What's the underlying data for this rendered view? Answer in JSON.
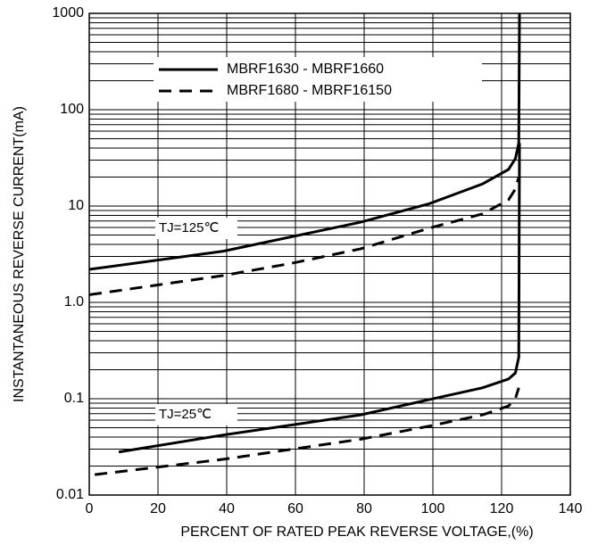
{
  "chart_data": {
    "type": "line",
    "xlabel": "PERCENT OF RATED PEAK REVERSE VOLTAGE,(%)",
    "ylabel": "INSTANTANEOUS REVERSE CURRENT(mA)",
    "xlim": [
      0,
      140
    ],
    "xticks": [
      0,
      20,
      40,
      60,
      80,
      100,
      120,
      140
    ],
    "ylim": [
      0.01,
      1000
    ],
    "log_y": true,
    "grid": true,
    "yticks": [
      0.01,
      0.1,
      {
        "value": 1,
        "label": "1.0"
      },
      10,
      100,
      1000
    ],
    "legend": "upper left",
    "annotations": [
      "TJ=125℃",
      "TJ=25℃"
    ],
    "series": [
      {
        "name": "MBRF1630 - MBRF1660",
        "color": "#000000",
        "dash": "solid",
        "x": [
          0,
          39,
          79,
          99,
          114.5,
          122,
          124,
          125,
          125.2
        ],
        "values": [
          2.2,
          3.4,
          6.8,
          10.6,
          17,
          24,
          31,
          45,
          1000
        ]
      },
      {
        "name": "MBRF1680 - MBRF16150",
        "color": "#000000",
        "dash": "dashed",
        "x": [
          0,
          19,
          39,
          59,
          79,
          99,
          114.5,
          122,
          124,
          125
        ],
        "values": [
          1.2,
          1.5,
          1.9,
          2.55,
          3.6,
          5.9,
          8.3,
          11.6,
          15,
          20
        ]
      },
      {
        "color": "#000000",
        "dash": "solid",
        "x": [
          8.6,
          39,
          79,
          99,
          114.5,
          122,
          124,
          125,
          125.2
        ],
        "values": [
          0.028,
          0.042,
          0.068,
          0.098,
          0.13,
          0.16,
          0.185,
          0.27,
          45
        ]
      },
      {
        "color": "#000000",
        "dash": "dashed",
        "x": [
          1.6,
          39,
          79,
          99,
          114.5,
          122,
          124,
          125
        ],
        "values": [
          0.0163,
          0.0235,
          0.038,
          0.052,
          0.068,
          0.084,
          0.1,
          0.13
        ]
      }
    ]
  }
}
